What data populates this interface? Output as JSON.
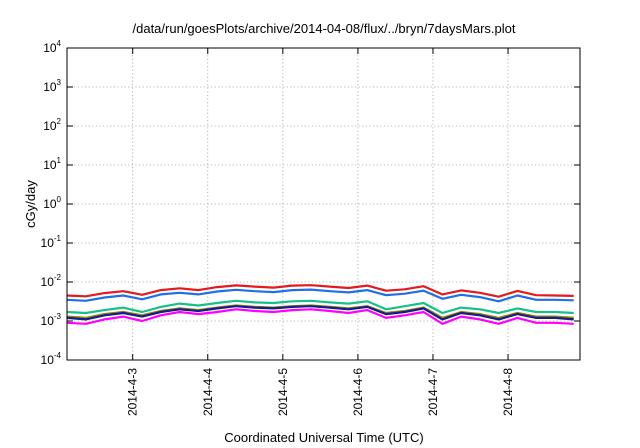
{
  "chart_data": {
    "type": "line",
    "title": "/data/run/goesPlots/archive/2014-04-08/flux/../bryn/7daysMars.plot",
    "xlabel": "Coordinated Universal Time (UTC)",
    "ylabel": "cGy/day",
    "yscale": "log",
    "ylim": [
      0.0001,
      10000
    ],
    "xlim": [
      "2014-04-02 03:00",
      "2014-04-08 23:00"
    ],
    "grid": true,
    "x_ticks": [
      "2014-4-3",
      "2014-4-4",
      "2014-4-5",
      "2014-4-6",
      "2014-4-7",
      "2014-4-8"
    ],
    "x_tick_dates": [
      "2014-04-03",
      "2014-04-04",
      "2014-04-05",
      "2014-04-06",
      "2014-04-07",
      "2014-04-08"
    ],
    "y_ticks": [
      {
        "base": "10",
        "exp": "-4"
      },
      {
        "base": "10",
        "exp": "-3"
      },
      {
        "base": "10",
        "exp": "-2"
      },
      {
        "base": "10",
        "exp": "-1"
      },
      {
        "base": "10",
        "exp": "0"
      },
      {
        "base": "10",
        "exp": "1"
      },
      {
        "base": "10",
        "exp": "2"
      },
      {
        "base": "10",
        "exp": "3"
      },
      {
        "base": "10",
        "exp": "4"
      }
    ],
    "x": [
      "2014-04-02 03:00",
      "2014-04-02 09:00",
      "2014-04-02 15:00",
      "2014-04-02 21:00",
      "2014-04-03 03:00",
      "2014-04-03 09:00",
      "2014-04-03 15:00",
      "2014-04-03 21:00",
      "2014-04-04 03:00",
      "2014-04-04 09:00",
      "2014-04-04 15:00",
      "2014-04-04 21:00",
      "2014-04-05 03:00",
      "2014-04-05 09:00",
      "2014-04-05 15:00",
      "2014-04-05 21:00",
      "2014-04-06 03:00",
      "2014-04-06 09:00",
      "2014-04-06 15:00",
      "2014-04-06 21:00",
      "2014-04-07 03:00",
      "2014-04-07 09:00",
      "2014-04-07 15:00",
      "2014-04-07 21:00",
      "2014-04-08 03:00",
      "2014-04-08 09:00",
      "2014-04-08 15:00",
      "2014-04-08 21:00"
    ],
    "series": [
      {
        "color": "#e41a1c",
        "values": [
          0.0045,
          0.0043,
          0.0052,
          0.0058,
          0.0047,
          0.0062,
          0.0069,
          0.0062,
          0.0074,
          0.0082,
          0.0076,
          0.0072,
          0.0081,
          0.0083,
          0.0076,
          0.007,
          0.0081,
          0.006,
          0.0065,
          0.0078,
          0.0048,
          0.0061,
          0.0053,
          0.0042,
          0.0059,
          0.0046,
          0.0045,
          0.0044
        ]
      },
      {
        "color": "#1f6fe8",
        "values": [
          0.0035,
          0.0033,
          0.004,
          0.0045,
          0.0036,
          0.0048,
          0.0053,
          0.0048,
          0.0057,
          0.0063,
          0.0058,
          0.0055,
          0.0062,
          0.0064,
          0.0058,
          0.0054,
          0.0062,
          0.0046,
          0.005,
          0.006,
          0.0037,
          0.0047,
          0.0041,
          0.0032,
          0.0045,
          0.0035,
          0.0035,
          0.0034
        ]
      },
      {
        "color": "#16c08a",
        "values": [
          0.0017,
          0.0016,
          0.0019,
          0.0022,
          0.0017,
          0.0023,
          0.0028,
          0.0025,
          0.0029,
          0.0033,
          0.003,
          0.0029,
          0.0032,
          0.0033,
          0.003,
          0.0028,
          0.0032,
          0.002,
          0.0024,
          0.0029,
          0.0016,
          0.0022,
          0.002,
          0.0016,
          0.0021,
          0.0017,
          0.0017,
          0.0016
        ]
      },
      {
        "color": "#8a8a00",
        "values": [
          0.0013,
          0.0012,
          0.0015,
          0.0017,
          0.0014,
          0.0018,
          0.0021,
          0.0019,
          0.0022,
          0.0025,
          0.0023,
          0.0022,
          0.0024,
          0.0025,
          0.0023,
          0.0021,
          0.0024,
          0.0016,
          0.0018,
          0.0022,
          0.0012,
          0.0017,
          0.0015,
          0.0012,
          0.0016,
          0.0013,
          0.0013,
          0.0012
        ]
      },
      {
        "color": "#1a1a8c",
        "values": [
          0.0012,
          0.0011,
          0.0014,
          0.0016,
          0.0013,
          0.0017,
          0.002,
          0.0018,
          0.0021,
          0.0024,
          0.0022,
          0.0021,
          0.0023,
          0.0024,
          0.0022,
          0.002,
          0.0023,
          0.0015,
          0.0017,
          0.0021,
          0.0011,
          0.0016,
          0.0014,
          0.0011,
          0.0015,
          0.0012,
          0.0012,
          0.0011
        ]
      },
      {
        "color": "#ff00ff",
        "values": [
          0.0009,
          0.00085,
          0.0011,
          0.0013,
          0.001,
          0.0014,
          0.0017,
          0.0015,
          0.0017,
          0.002,
          0.0018,
          0.0017,
          0.0019,
          0.002,
          0.0018,
          0.0016,
          0.0019,
          0.0012,
          0.0014,
          0.0017,
          0.00085,
          0.0013,
          0.0011,
          0.00085,
          0.0012,
          0.0009,
          0.0009,
          0.00085
        ]
      }
    ]
  }
}
